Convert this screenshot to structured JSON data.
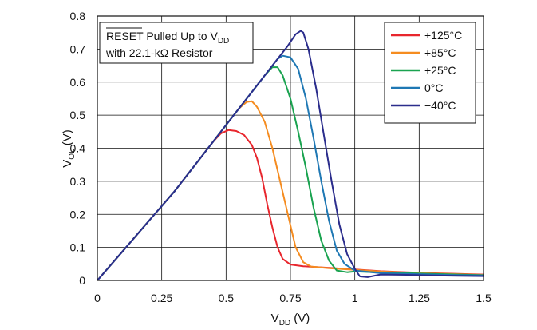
{
  "chart_data": {
    "type": "line",
    "xlabel": {
      "main": "V",
      "sub": "DD",
      "unit": " (V)"
    },
    "ylabel": {
      "main": "V",
      "sub": "OL",
      "unit": " (V)"
    },
    "xlim": [
      0,
      1.5
    ],
    "ylim": [
      0,
      0.8
    ],
    "xticks": [
      0,
      0.25,
      0.5,
      0.75,
      1,
      1.25,
      1.5
    ],
    "xtick_labels": [
      "0",
      "0.25",
      "0.5",
      "0.75",
      "1",
      "1.25",
      "1.5"
    ],
    "yticks": [
      0,
      0.1,
      0.2,
      0.3,
      0.4,
      0.5,
      0.6,
      0.7,
      0.8
    ],
    "ytick_labels": [
      "0",
      "0.1",
      "0.2",
      "0.3",
      "0.4",
      "0.5",
      "0.6",
      "0.7",
      "0.8"
    ],
    "grid": true,
    "legend_position": "top-right",
    "annotation": {
      "line1_overbar": "RESET",
      "line1_rest": " Pulled Up to V",
      "line1_sub": "DD",
      "line2": "with 22.1-kΩ Resistor"
    },
    "series": [
      {
        "name": "+125°C",
        "color": "#e8262d",
        "points": [
          [
            0,
            0
          ],
          [
            0.1,
            0.09
          ],
          [
            0.2,
            0.18
          ],
          [
            0.3,
            0.27
          ],
          [
            0.4,
            0.37
          ],
          [
            0.45,
            0.42
          ],
          [
            0.48,
            0.445
          ],
          [
            0.51,
            0.455
          ],
          [
            0.54,
            0.452
          ],
          [
            0.57,
            0.44
          ],
          [
            0.6,
            0.41
          ],
          [
            0.62,
            0.37
          ],
          [
            0.64,
            0.31
          ],
          [
            0.66,
            0.23
          ],
          [
            0.68,
            0.16
          ],
          [
            0.7,
            0.1
          ],
          [
            0.72,
            0.065
          ],
          [
            0.75,
            0.048
          ],
          [
            0.8,
            0.043
          ],
          [
            0.9,
            0.038
          ],
          [
            1.0,
            0.033
          ],
          [
            1.1,
            0.028
          ],
          [
            1.2,
            0.025
          ],
          [
            1.3,
            0.022
          ],
          [
            1.4,
            0.02
          ],
          [
            1.5,
            0.018
          ]
        ]
      },
      {
        "name": "+85°C",
        "color": "#f58c20",
        "points": [
          [
            0,
            0
          ],
          [
            0.1,
            0.09
          ],
          [
            0.2,
            0.18
          ],
          [
            0.3,
            0.27
          ],
          [
            0.4,
            0.37
          ],
          [
            0.45,
            0.42
          ],
          [
            0.5,
            0.47
          ],
          [
            0.55,
            0.52
          ],
          [
            0.58,
            0.54
          ],
          [
            0.6,
            0.542
          ],
          [
            0.62,
            0.525
          ],
          [
            0.65,
            0.48
          ],
          [
            0.68,
            0.4
          ],
          [
            0.71,
            0.3
          ],
          [
            0.74,
            0.2
          ],
          [
            0.77,
            0.1
          ],
          [
            0.8,
            0.055
          ],
          [
            0.83,
            0.042
          ],
          [
            0.9,
            0.037
          ],
          [
            1.0,
            0.032
          ],
          [
            1.1,
            0.027
          ],
          [
            1.2,
            0.024
          ],
          [
            1.3,
            0.021
          ],
          [
            1.4,
            0.019
          ],
          [
            1.5,
            0.017
          ]
        ]
      },
      {
        "name": "+25°C",
        "color": "#1aa350",
        "points": [
          [
            0,
            0
          ],
          [
            0.1,
            0.09
          ],
          [
            0.2,
            0.18
          ],
          [
            0.3,
            0.27
          ],
          [
            0.4,
            0.37
          ],
          [
            0.5,
            0.47
          ],
          [
            0.55,
            0.52
          ],
          [
            0.6,
            0.57
          ],
          [
            0.65,
            0.62
          ],
          [
            0.68,
            0.645
          ],
          [
            0.7,
            0.645
          ],
          [
            0.72,
            0.62
          ],
          [
            0.75,
            0.55
          ],
          [
            0.78,
            0.45
          ],
          [
            0.81,
            0.34
          ],
          [
            0.84,
            0.22
          ],
          [
            0.87,
            0.12
          ],
          [
            0.9,
            0.06
          ],
          [
            0.93,
            0.03
          ],
          [
            0.97,
            0.025
          ],
          [
            1.0,
            0.027
          ],
          [
            1.1,
            0.024
          ],
          [
            1.2,
            0.022
          ],
          [
            1.3,
            0.02
          ],
          [
            1.4,
            0.018
          ],
          [
            1.5,
            0.016
          ]
        ]
      },
      {
        "name": "0°C",
        "color": "#1f78b4",
        "points": [
          [
            0,
            0
          ],
          [
            0.1,
            0.09
          ],
          [
            0.2,
            0.18
          ],
          [
            0.3,
            0.27
          ],
          [
            0.4,
            0.37
          ],
          [
            0.5,
            0.47
          ],
          [
            0.6,
            0.57
          ],
          [
            0.65,
            0.62
          ],
          [
            0.7,
            0.67
          ],
          [
            0.72,
            0.68
          ],
          [
            0.75,
            0.675
          ],
          [
            0.78,
            0.64
          ],
          [
            0.81,
            0.55
          ],
          [
            0.84,
            0.43
          ],
          [
            0.87,
            0.3
          ],
          [
            0.9,
            0.18
          ],
          [
            0.93,
            0.09
          ],
          [
            0.96,
            0.05
          ],
          [
            1.0,
            0.03
          ],
          [
            1.1,
            0.022
          ],
          [
            1.2,
            0.02
          ],
          [
            1.3,
            0.018
          ],
          [
            1.4,
            0.016
          ],
          [
            1.5,
            0.015
          ]
        ]
      },
      {
        "name": "−40°C",
        "color": "#2b2d8c",
        "points": [
          [
            0,
            0
          ],
          [
            0.1,
            0.09
          ],
          [
            0.2,
            0.18
          ],
          [
            0.3,
            0.27
          ],
          [
            0.4,
            0.37
          ],
          [
            0.5,
            0.47
          ],
          [
            0.6,
            0.57
          ],
          [
            0.65,
            0.62
          ],
          [
            0.7,
            0.67
          ],
          [
            0.74,
            0.71
          ],
          [
            0.77,
            0.745
          ],
          [
            0.79,
            0.755
          ],
          [
            0.8,
            0.75
          ],
          [
            0.82,
            0.7
          ],
          [
            0.85,
            0.58
          ],
          [
            0.88,
            0.44
          ],
          [
            0.91,
            0.3
          ],
          [
            0.94,
            0.17
          ],
          [
            0.97,
            0.08
          ],
          [
            1.0,
            0.035
          ],
          [
            1.02,
            0.012
          ],
          [
            1.05,
            0.01
          ],
          [
            1.1,
            0.018
          ],
          [
            1.2,
            0.017
          ],
          [
            1.3,
            0.015
          ],
          [
            1.4,
            0.014
          ],
          [
            1.5,
            0.013
          ]
        ]
      }
    ]
  }
}
